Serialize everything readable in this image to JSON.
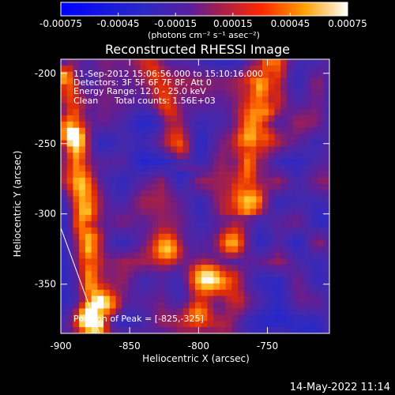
{
  "chart_data": {
    "type": "heatmap",
    "title": "Reconstructed RHESSI Image",
    "xlabel": "Heliocentric X (arcsec)",
    "ylabel": "Heliocentric Y (arcsec)",
    "xlim": [
      -900,
      -705
    ],
    "ylim": [
      -385,
      -190
    ],
    "x_ticks": [
      -900,
      -850,
      -800,
      -750
    ],
    "y_ticks": [
      -200,
      -250,
      -300,
      -350
    ],
    "x_tick_labels": [
      "-900",
      "-850",
      "-800",
      "-750"
    ],
    "y_tick_labels": [
      "-200",
      "-250",
      "-300",
      "-350"
    ],
    "colorbar": {
      "range": [
        -0.00075,
        0.00075
      ],
      "tick_values": [
        -0.00075,
        -0.00045,
        -0.00015,
        0.00015,
        0.00045,
        0.00075
      ],
      "tick_labels": [
        "-0.00075",
        "-0.00045",
        "-0.00015",
        "0.00015",
        "0.00045",
        "0.00075"
      ],
      "unit_label": "(photons cm⁻² s⁻¹ asec⁻²)"
    },
    "annotations": {
      "time_range": "11-Sep-2012 15:06:56.000 to 15:10:16.000",
      "detectors": "Detectors: 3F 5F 6F 7F 8F, Att 0",
      "energy_range": "Energy Range: 12.0 - 25.0 keV",
      "algorithm": "Clean",
      "total_counts": "Total counts: 1.56E+03",
      "peak_position": "Position of Peak = [-825,-325]"
    },
    "peak": {
      "x": -825,
      "y": -325
    },
    "grid": false,
    "legend": "none",
    "limb_line": [
      {
        "x": -900,
        "y": -310
      },
      {
        "x": -872,
        "y": -385
      }
    ],
    "bright_sources": [
      {
        "x": -822,
        "y": -325,
        "w": 12,
        "s": 0.0008
      },
      {
        "x": -795,
        "y": -345,
        "w": 14,
        "s": 0.00085
      },
      {
        "x": -778,
        "y": -320,
        "w": 9,
        "s": 0.0005
      },
      {
        "x": -880,
        "y": -375,
        "w": 10,
        "s": 0.0006
      },
      {
        "x": -865,
        "y": -365,
        "w": 9,
        "s": 0.0005
      },
      {
        "x": -800,
        "y": -370,
        "w": 10,
        "s": 0.0005
      },
      {
        "x": -892,
        "y": -245,
        "w": 9,
        "s": 0.0005
      }
    ]
  },
  "footer": {
    "datetime": "14-May-2022 11:14"
  }
}
